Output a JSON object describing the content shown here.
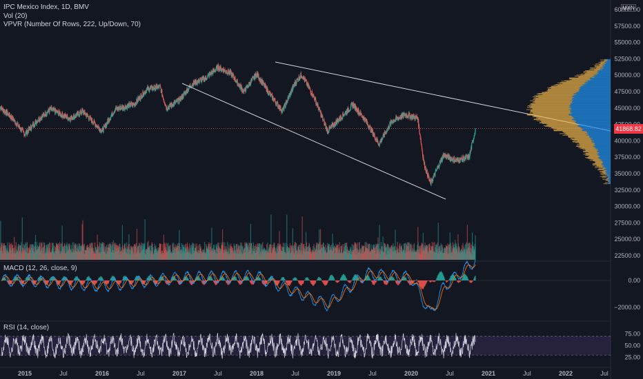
{
  "legends": {
    "main": "IPC Mexico Index, 1D, BMV",
    "vol": "Vol (20)",
    "vpvr": "VPVR (Number Of Rows, 222, Up/Down, 70)",
    "macd": "MACD (12, 26, close, 9)",
    "rsi": "RSI (14, close)"
  },
  "currency": "MXN",
  "price_badge": {
    "value": "41868.82",
    "color": "#f23645"
  },
  "colors": {
    "up": "#26a69a",
    "down": "#ef5350",
    "macd_line": "#2196f3",
    "signal_line": "#ff6d00",
    "rsi_line": "#d1d4dc",
    "rsi_band": "#7e57c2",
    "vpvr_up": "#2196f3",
    "vpvr_down": "#f0b54a",
    "trendline": "#d1d4dc"
  },
  "chart_data": [
    {
      "type": "candlestick",
      "title": "IPC Mexico Index, 1D, BMV",
      "x_ticks": [
        "2015",
        "Jul",
        "2016",
        "Jul",
        "2017",
        "Jul",
        "2018",
        "Jul",
        "2019",
        "Jul",
        "2020",
        "Jul",
        "2021",
        "Jul",
        "2022",
        "Jul"
      ],
      "y_ticks": [
        "60000.00",
        "57500.00",
        "55000.00",
        "52500.00",
        "50000.00",
        "47500.00",
        "45000.00",
        "42500.00",
        "40000.00",
        "37500.00",
        "35000.00",
        "32500.00",
        "30000.00",
        "27500.00",
        "25000.00",
        "22500.00"
      ],
      "close_series": {
        "x": [
          "2014-09",
          "2014-11",
          "2015-01",
          "2015-03",
          "2015-05",
          "2015-08",
          "2015-10",
          "2016-01",
          "2016-03",
          "2016-06",
          "2016-08",
          "2016-10",
          "2016-11",
          "2017-01",
          "2017-03",
          "2017-05",
          "2017-07",
          "2017-09",
          "2017-11",
          "2018-01",
          "2018-03",
          "2018-05",
          "2018-07",
          "2018-08",
          "2018-10",
          "2018-12",
          "2019-02",
          "2019-04",
          "2019-06",
          "2019-08",
          "2019-10",
          "2019-12",
          "2020-02",
          "2020-03",
          "2020-04",
          "2020-06",
          "2020-08",
          "2020-10",
          "2020-11"
        ],
        "y": [
          45300,
          43500,
          41000,
          43200,
          44800,
          43400,
          44500,
          41500,
          44800,
          45600,
          47900,
          48200,
          45000,
          46200,
          48700,
          49500,
          51200,
          50300,
          47500,
          50200,
          47200,
          44500,
          48900,
          50100,
          46500,
          41500,
          43500,
          45500,
          43000,
          39500,
          43000,
          44000,
          43500,
          36500,
          33500,
          37800,
          37000,
          37500,
          41900
        ]
      },
      "last_price": 41868.82
    },
    {
      "type": "volume_profile",
      "title": "VPVR (Number Of Rows, 222, Up/Down, 70)",
      "price_range": [
        33500,
        52500
      ],
      "peak_price": 44500
    },
    {
      "type": "bar",
      "title": "Vol (20)"
    },
    {
      "type": "line",
      "title": "MACD (12, 26, close, 9)",
      "y_ticks": [
        "0.00",
        "−2000.00"
      ],
      "series": [
        {
          "name": "MACD",
          "x": [
            "2015-01",
            "2016-01",
            "2017-01",
            "2018-01",
            "2018-12",
            "2019-06",
            "2020-01",
            "2020-04",
            "2020-06",
            "2020-11"
          ],
          "y": [
            0,
            -400,
            200,
            300,
            -1800,
            500,
            200,
            -2500,
            -500,
            1500
          ]
        }
      ]
    },
    {
      "type": "line",
      "title": "RSI (14, close)",
      "y_ticks": [
        "75.00",
        "50.00",
        "25.00"
      ],
      "band": [
        30,
        70
      ]
    }
  ]
}
